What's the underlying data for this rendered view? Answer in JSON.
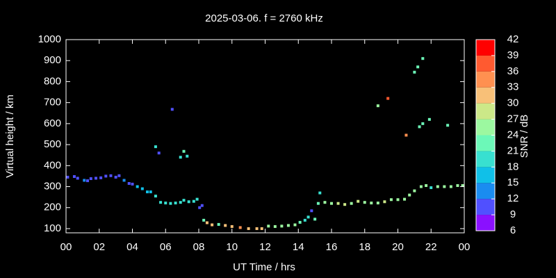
{
  "chart_data": {
    "type": "scatter",
    "title": "2025-03-06. f = 2760 kHz",
    "xlabel": "UT Time / hrs",
    "ylabel": "Virtual height / km",
    "xlim": [
      0,
      24
    ],
    "ylim": [
      80,
      1000
    ],
    "xticks": [
      {
        "value": 0,
        "label": "00"
      },
      {
        "value": 2,
        "label": "02"
      },
      {
        "value": 4,
        "label": "04"
      },
      {
        "value": 6,
        "label": "06"
      },
      {
        "value": 8,
        "label": "08"
      },
      10,
      12,
      14,
      16,
      18,
      20,
      22,
      {
        "value": 24,
        "label": "00"
      }
    ],
    "yticks": [
      100,
      200,
      300,
      400,
      500,
      600,
      700,
      800,
      900,
      1000
    ],
    "colorbar": {
      "label": "SNR / dB",
      "ticks": [
        6,
        9,
        12,
        15,
        18,
        21,
        24,
        27,
        30,
        33,
        36,
        39,
        42
      ],
      "colors": [
        "#8a10ff",
        "#5050ff",
        "#1a8cf0",
        "#10c0e8",
        "#38e0d0",
        "#6cf8b8",
        "#9cf8a0",
        "#cce888",
        "#f8c078",
        "#ff9050",
        "#ff5a30",
        "#ff0000"
      ]
    },
    "x": [
      0.1,
      0.5,
      0.7,
      1.1,
      1.3,
      1.5,
      1.8,
      2.1,
      2.4,
      2.7,
      3.0,
      3.2,
      3.5,
      3.8,
      4.0,
      4.3,
      4.6,
      4.9,
      5.1,
      5.4,
      5.7,
      6.0,
      6.3,
      6.6,
      6.9,
      7.1,
      7.4,
      7.7,
      7.9,
      8.05,
      8.2,
      8.3,
      8.5,
      8.8,
      9.2,
      9.6,
      10.0,
      10.5,
      11.0,
      11.5,
      11.8,
      12.2,
      12.6,
      13.0,
      13.4,
      13.8,
      14.1,
      14.4,
      14.6,
      14.8,
      15.0,
      15.2,
      15.3,
      15.6,
      16.0,
      16.4,
      16.8,
      17.2,
      17.6,
      18.0,
      18.4,
      18.8,
      19.2,
      19.6,
      20.0,
      20.4,
      20.7,
      21.0,
      21.4,
      21.7,
      22.0,
      22.4,
      22.8,
      23.2,
      23.6,
      23.9,
      5.4,
      5.6,
      6.4,
      6.9,
      7.1,
      7.3,
      18.8,
      19.4,
      20.5,
      21.0,
      21.2,
      21.5,
      21.3,
      21.5,
      21.9,
      23.0
    ],
    "y": [
      345,
      348,
      340,
      330,
      328,
      338,
      340,
      342,
      350,
      352,
      345,
      352,
      330,
      315,
      312,
      300,
      290,
      275,
      275,
      255,
      225,
      222,
      220,
      222,
      225,
      235,
      228,
      230,
      240,
      200,
      210,
      140,
      128,
      118,
      120,
      115,
      110,
      105,
      100,
      100,
      100,
      112,
      110,
      112,
      115,
      118,
      130,
      140,
      155,
      185,
      145,
      220,
      270,
      225,
      220,
      220,
      215,
      220,
      230,
      225,
      222,
      222,
      228,
      238,
      238,
      240,
      260,
      280,
      300,
      305,
      295,
      300,
      300,
      300,
      305,
      305,
      490,
      460,
      668,
      440,
      468,
      445,
      685,
      720,
      545,
      845,
      870,
      910,
      585,
      600,
      620,
      592
    ],
    "snr": [
      11,
      11,
      11,
      12,
      11,
      11,
      11,
      11,
      11,
      11,
      11,
      11,
      12,
      11,
      11,
      17,
      17,
      17,
      17,
      18,
      18,
      18,
      18,
      18,
      19,
      20,
      19,
      20,
      19,
      11,
      11,
      23,
      31,
      32,
      23,
      31,
      31,
      33,
      32,
      31,
      31,
      24,
      24,
      25,
      26,
      24,
      22,
      19,
      19,
      11,
      22,
      21,
      19,
      26,
      26,
      27,
      28,
      26,
      29,
      26,
      26,
      26,
      27,
      26,
      26,
      26,
      26,
      26,
      24,
      25,
      20,
      25,
      25,
      26,
      24,
      24,
      19,
      11,
      11,
      19,
      22,
      19,
      24,
      37,
      33,
      21,
      21,
      23,
      21,
      21,
      22,
      22
    ]
  }
}
